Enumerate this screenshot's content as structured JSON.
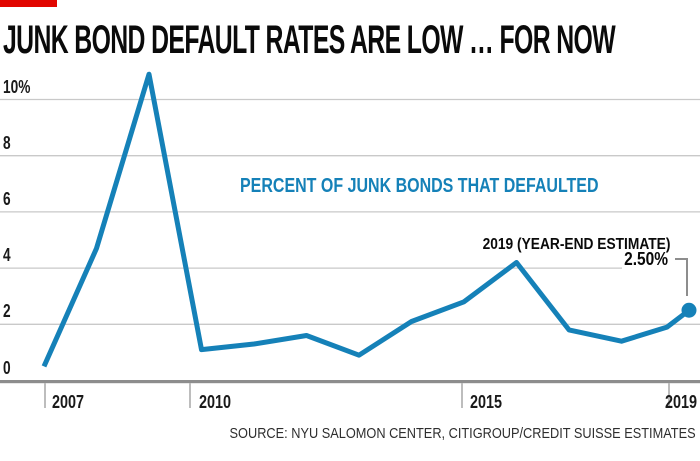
{
  "title": "JUNK BOND DEFAULT RATES ARE LOW … FOR NOW",
  "source": "SOURCE: NYU SALOMON CENTER, CITIGROUP/CREDIT SUISSE ESTIMATES",
  "colors": {
    "accent_red": "#e10600",
    "line_blue": "#1581b8",
    "gridline_gray": "#c9c9c9",
    "axis_gray": "#8d8d8d",
    "tick_gray": "#bdbdbd",
    "text_black": "#0a0a0a"
  },
  "chart_data": {
    "type": "line",
    "title": "JUNK BOND DEFAULT RATES ARE LOW … FOR NOW",
    "series_label": "PERCENT OF JUNK BONDS THAT DEFAULTED",
    "xlabel": "",
    "ylabel": "",
    "ylim": [
      0,
      11
    ],
    "grid": true,
    "x": [
      2007,
      2008,
      2009,
      2010,
      2011,
      2012,
      2013,
      2014,
      2015,
      2016,
      2017,
      2018
    ],
    "values": [
      0.5,
      4.7,
      10.9,
      1.1,
      1.3,
      1.6,
      0.9,
      2.1,
      2.8,
      4.2,
      1.8,
      1.4
    ],
    "partial_2019_value": 1.9,
    "estimate": {
      "label": "2019 (YEAR-END ESTIMATE)",
      "value_label": "2.50%",
      "year": 2019,
      "value": 2.5
    },
    "yticks": {
      "labels": [
        "10%",
        "8",
        "6",
        "4",
        "2",
        "0"
      ],
      "values": [
        10,
        8,
        6,
        4,
        2,
        0
      ]
    },
    "xticks": {
      "labels": [
        "2007",
        "2010",
        "2015",
        "2019"
      ]
    }
  }
}
